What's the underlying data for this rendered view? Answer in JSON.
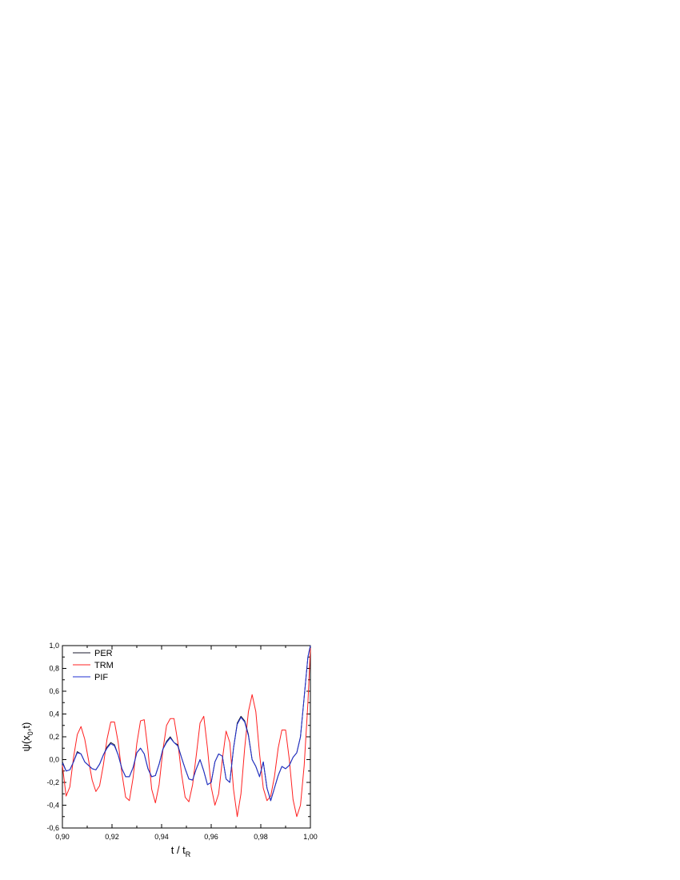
{
  "chart_data": {
    "type": "line",
    "title": "",
    "xlabel": {
      "main": "t / t",
      "sub": "R"
    },
    "ylabel": {
      "pre": "ψ(x",
      "sub": "0",
      "post": ",t)"
    },
    "xlim": [
      0.9,
      1.0
    ],
    "ylim": [
      -0.6,
      1.0
    ],
    "x_ticks": [
      {
        "value": 0.9,
        "label": "0,90"
      },
      {
        "value": 0.92,
        "label": "0,92"
      },
      {
        "value": 0.94,
        "label": "0,94"
      },
      {
        "value": 0.96,
        "label": "0,96"
      },
      {
        "value": 0.98,
        "label": "0,98"
      },
      {
        "value": 1.0,
        "label": "1,00"
      }
    ],
    "y_ticks": [
      {
        "value": -0.6,
        "label": "-0,6"
      },
      {
        "value": -0.4,
        "label": "-0,4"
      },
      {
        "value": -0.2,
        "label": "-0,2"
      },
      {
        "value": 0.0,
        "label": "0,0"
      },
      {
        "value": 0.2,
        "label": "0,2"
      },
      {
        "value": 0.4,
        "label": "0,4"
      },
      {
        "value": 0.6,
        "label": "0,6"
      },
      {
        "value": 0.8,
        "label": "0,8"
      },
      {
        "value": 1.0,
        "label": "1,0"
      }
    ],
    "grid": false,
    "legend_position": "top-left",
    "series": [
      {
        "name": "PER",
        "color": "#1a1a2e",
        "x": [
          0.9,
          0.9015,
          0.903,
          0.9045,
          0.906,
          0.9075,
          0.909,
          0.9105,
          0.912,
          0.9135,
          0.915,
          0.9165,
          0.918,
          0.9195,
          0.921,
          0.9225,
          0.924,
          0.9255,
          0.927,
          0.9285,
          0.93,
          0.9315,
          0.933,
          0.9345,
          0.936,
          0.9375,
          0.939,
          0.9405,
          0.942,
          0.9435,
          0.945,
          0.9465,
          0.948,
          0.9495,
          0.951,
          0.9525,
          0.954,
          0.9555,
          0.957,
          0.9585,
          0.96,
          0.9615,
          0.963,
          0.9645,
          0.966,
          0.9675,
          0.969,
          0.9705,
          0.972,
          0.9735,
          0.975,
          0.9765,
          0.978,
          0.9795,
          0.981,
          0.9825,
          0.984,
          0.9855,
          0.987,
          0.9885,
          0.99,
          0.9915,
          0.993,
          0.9945,
          0.996,
          0.9975,
          0.999,
          1.0
        ],
        "y": [
          -0.02,
          -0.1,
          -0.09,
          -0.02,
          0.07,
          0.05,
          -0.02,
          -0.05,
          -0.08,
          -0.09,
          -0.04,
          0.04,
          0.11,
          0.15,
          0.13,
          0.04,
          -0.08,
          -0.15,
          -0.15,
          -0.07,
          0.06,
          0.1,
          0.05,
          -0.08,
          -0.15,
          -0.14,
          -0.04,
          0.09,
          0.16,
          0.2,
          0.15,
          0.13,
          0.02,
          -0.08,
          -0.17,
          -0.18,
          -0.08,
          0.0,
          -0.1,
          -0.22,
          -0.2,
          -0.02,
          0.05,
          0.03,
          -0.17,
          -0.2,
          0.1,
          0.32,
          0.38,
          0.34,
          0.22,
          0.0,
          -0.06,
          -0.15,
          -0.02,
          -0.25,
          -0.36,
          -0.25,
          -0.14,
          -0.06,
          -0.08,
          -0.05,
          0.02,
          0.06,
          0.2,
          0.55,
          0.9,
          1.0
        ]
      },
      {
        "name": "TRM",
        "color": "#ff2020",
        "x": [
          0.9,
          0.9015,
          0.903,
          0.9045,
          0.906,
          0.9075,
          0.909,
          0.9105,
          0.912,
          0.9135,
          0.915,
          0.9165,
          0.918,
          0.9195,
          0.921,
          0.9225,
          0.924,
          0.9255,
          0.927,
          0.9285,
          0.93,
          0.9315,
          0.933,
          0.9345,
          0.936,
          0.9375,
          0.939,
          0.9405,
          0.942,
          0.9435,
          0.945,
          0.9465,
          0.948,
          0.9495,
          0.951,
          0.9525,
          0.954,
          0.9555,
          0.957,
          0.9585,
          0.96,
          0.9615,
          0.963,
          0.9645,
          0.966,
          0.9675,
          0.969,
          0.9705,
          0.972,
          0.9735,
          0.975,
          0.9765,
          0.978,
          0.9795,
          0.981,
          0.9825,
          0.984,
          0.9855,
          0.987,
          0.9885,
          0.99,
          0.9915,
          0.993,
          0.9945,
          0.996,
          0.9975,
          0.999,
          1.0
        ],
        "y": [
          -0.05,
          -0.32,
          -0.24,
          0.02,
          0.22,
          0.29,
          0.18,
          0.0,
          -0.18,
          -0.28,
          -0.23,
          -0.05,
          0.18,
          0.33,
          0.33,
          0.15,
          -0.12,
          -0.33,
          -0.36,
          -0.16,
          0.14,
          0.34,
          0.35,
          0.08,
          -0.26,
          -0.38,
          -0.22,
          0.08,
          0.3,
          0.36,
          0.36,
          0.16,
          -0.12,
          -0.33,
          -0.37,
          -0.22,
          0.04,
          0.32,
          0.38,
          0.1,
          -0.24,
          -0.4,
          -0.3,
          0.0,
          0.25,
          0.15,
          -0.26,
          -0.5,
          -0.3,
          0.1,
          0.42,
          0.57,
          0.42,
          0.05,
          -0.25,
          -0.36,
          -0.32,
          -0.15,
          0.1,
          0.26,
          0.26,
          0.0,
          -0.35,
          -0.5,
          -0.4,
          -0.05,
          0.5,
          0.98
        ]
      },
      {
        "name": "PIF",
        "color": "#1f2fd0",
        "x": [
          0.9,
          0.9015,
          0.903,
          0.9045,
          0.906,
          0.9075,
          0.909,
          0.9105,
          0.912,
          0.9135,
          0.915,
          0.9165,
          0.918,
          0.9195,
          0.921,
          0.9225,
          0.924,
          0.9255,
          0.927,
          0.9285,
          0.93,
          0.9315,
          0.933,
          0.9345,
          0.936,
          0.9375,
          0.939,
          0.9405,
          0.942,
          0.9435,
          0.945,
          0.9465,
          0.948,
          0.9495,
          0.951,
          0.9525,
          0.954,
          0.9555,
          0.957,
          0.9585,
          0.96,
          0.9615,
          0.963,
          0.9645,
          0.966,
          0.9675,
          0.969,
          0.9705,
          0.972,
          0.9735,
          0.975,
          0.9765,
          0.978,
          0.9795,
          0.981,
          0.9825,
          0.984,
          0.9855,
          0.987,
          0.9885,
          0.99,
          0.9915,
          0.993,
          0.9945,
          0.996,
          0.9975,
          0.999,
          1.0
        ],
        "y": [
          -0.03,
          -0.1,
          -0.09,
          -0.02,
          0.06,
          0.05,
          -0.02,
          -0.05,
          -0.08,
          -0.09,
          -0.04,
          0.04,
          0.1,
          0.14,
          0.12,
          0.04,
          -0.08,
          -0.15,
          -0.15,
          -0.07,
          0.06,
          0.1,
          0.05,
          -0.08,
          -0.15,
          -0.14,
          -0.04,
          0.09,
          0.15,
          0.19,
          0.15,
          0.12,
          0.02,
          -0.08,
          -0.17,
          -0.18,
          -0.08,
          0.0,
          -0.1,
          -0.22,
          -0.2,
          -0.02,
          0.05,
          0.03,
          -0.17,
          -0.2,
          0.1,
          0.31,
          0.37,
          0.33,
          0.21,
          0.0,
          -0.06,
          -0.15,
          -0.02,
          -0.25,
          -0.36,
          -0.25,
          -0.14,
          -0.06,
          -0.08,
          -0.05,
          0.02,
          0.06,
          0.2,
          0.55,
          0.9,
          1.0
        ]
      }
    ]
  }
}
